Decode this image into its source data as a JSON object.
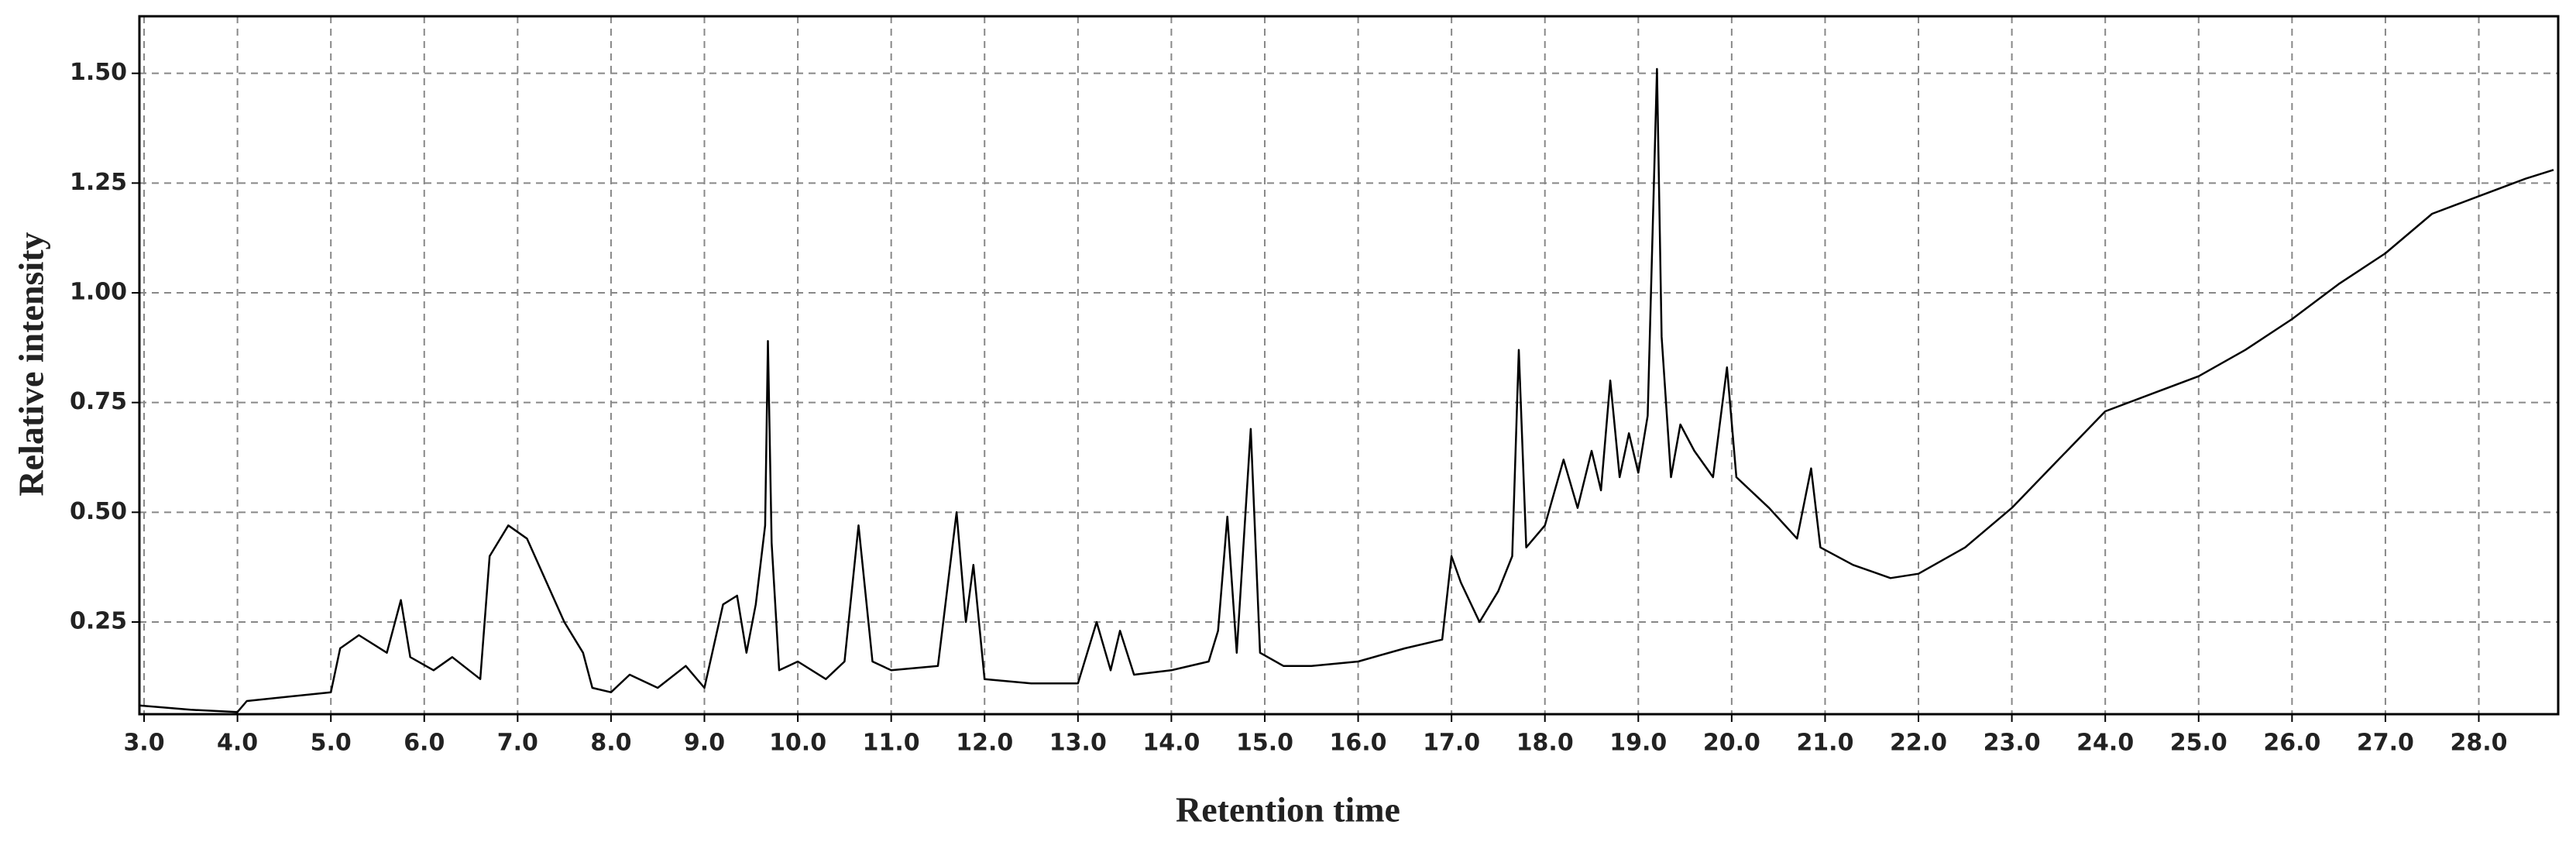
{
  "chart_data": {
    "type": "line",
    "xlabel": "Retention time",
    "ylabel": "Relative intensity",
    "color": "#000000",
    "grid": true,
    "xlim": [
      2.95,
      28.85
    ],
    "ylim": [
      0.04,
      1.63
    ],
    "xticks": [
      {
        "value": 3,
        "label": "3.0"
      },
      {
        "value": 4,
        "label": "4.0"
      },
      {
        "value": 5,
        "label": "5.0"
      },
      {
        "value": 6,
        "label": "6.0"
      },
      {
        "value": 7,
        "label": "7.0"
      },
      {
        "value": 8,
        "label": "8.0"
      },
      {
        "value": 9,
        "label": "9.0"
      },
      {
        "value": 10,
        "label": "10.0"
      },
      {
        "value": 11,
        "label": "11.0"
      },
      {
        "value": 12,
        "label": "12.0"
      },
      {
        "value": 13,
        "label": "13.0"
      },
      {
        "value": 14,
        "label": "14.0"
      },
      {
        "value": 15,
        "label": "15.0"
      },
      {
        "value": 16,
        "label": "16.0"
      },
      {
        "value": 17,
        "label": "17.0"
      },
      {
        "value": 18,
        "label": "18.0"
      },
      {
        "value": 19,
        "label": "19.0"
      },
      {
        "value": 20,
        "label": "20.0"
      },
      {
        "value": 21,
        "label": "21.0"
      },
      {
        "value": 22,
        "label": "22.0"
      },
      {
        "value": 23,
        "label": "23.0"
      },
      {
        "value": 24,
        "label": "24.0"
      },
      {
        "value": 25,
        "label": "25.0"
      },
      {
        "value": 26,
        "label": "26.0"
      },
      {
        "value": 27,
        "label": "27.0"
      },
      {
        "value": 28,
        "label": "28.0"
      }
    ],
    "yticks": [
      0.25,
      {
        "value": 0.5,
        "label": "0.50"
      },
      0.75,
      {
        "value": 1,
        "label": "1.00"
      },
      1.25,
      {
        "value": 1.5,
        "label": "1.50"
      }
    ],
    "x": [
      2.95,
      3.5,
      4.0,
      4.1,
      5.0,
      5.1,
      5.3,
      5.6,
      5.75,
      5.85,
      6.1,
      6.3,
      6.6,
      6.7,
      6.9,
      7.1,
      7.5,
      7.7,
      7.8,
      8.0,
      8.2,
      8.5,
      8.8,
      9.0,
      9.2,
      9.35,
      9.45,
      9.55,
      9.65,
      9.68,
      9.72,
      9.8,
      10.0,
      10.3,
      10.5,
      10.65,
      10.8,
      11.0,
      11.5,
      11.7,
      11.8,
      11.88,
      12.0,
      12.5,
      13.0,
      13.2,
      13.35,
      13.45,
      13.6,
      14.0,
      14.4,
      14.5,
      14.6,
      14.7,
      14.85,
      14.95,
      15.2,
      15.5,
      16.0,
      16.5,
      16.9,
      17.0,
      17.1,
      17.3,
      17.5,
      17.65,
      17.72,
      17.8,
      18.0,
      18.2,
      18.35,
      18.5,
      18.6,
      18.7,
      18.8,
      18.9,
      19.0,
      19.1,
      19.2,
      19.25,
      19.35,
      19.45,
      19.6,
      19.8,
      19.95,
      20.05,
      20.4,
      20.7,
      20.85,
      20.95,
      21.3,
      21.7,
      22.0,
      22.5,
      23.0,
      23.5,
      24.0,
      24.5,
      25.0,
      25.5,
      26.0,
      26.5,
      27.0,
      27.5,
      28.0,
      28.5,
      28.8
    ],
    "values": [
      0.06,
      0.05,
      0.045,
      0.07,
      0.09,
      0.19,
      0.22,
      0.18,
      0.3,
      0.17,
      0.14,
      0.17,
      0.12,
      0.4,
      0.47,
      0.44,
      0.25,
      0.18,
      0.1,
      0.09,
      0.13,
      0.1,
      0.15,
      0.1,
      0.29,
      0.31,
      0.18,
      0.29,
      0.47,
      0.89,
      0.43,
      0.14,
      0.16,
      0.12,
      0.16,
      0.47,
      0.16,
      0.14,
      0.15,
      0.5,
      0.25,
      0.38,
      0.12,
      0.11,
      0.11,
      0.25,
      0.14,
      0.23,
      0.13,
      0.14,
      0.16,
      0.23,
      0.49,
      0.18,
      0.69,
      0.18,
      0.15,
      0.15,
      0.16,
      0.19,
      0.21,
      0.4,
      0.34,
      0.25,
      0.32,
      0.4,
      0.87,
      0.42,
      0.47,
      0.62,
      0.51,
      0.64,
      0.55,
      0.8,
      0.58,
      0.68,
      0.59,
      0.72,
      1.51,
      0.9,
      0.58,
      0.7,
      0.64,
      0.58,
      0.83,
      0.58,
      0.51,
      0.44,
      0.6,
      0.42,
      0.38,
      0.35,
      0.36,
      0.42,
      0.51,
      0.62,
      0.73,
      0.77,
      0.81,
      0.87,
      0.94,
      1.02,
      1.09,
      1.18,
      1.22,
      1.26,
      1.28
    ]
  }
}
